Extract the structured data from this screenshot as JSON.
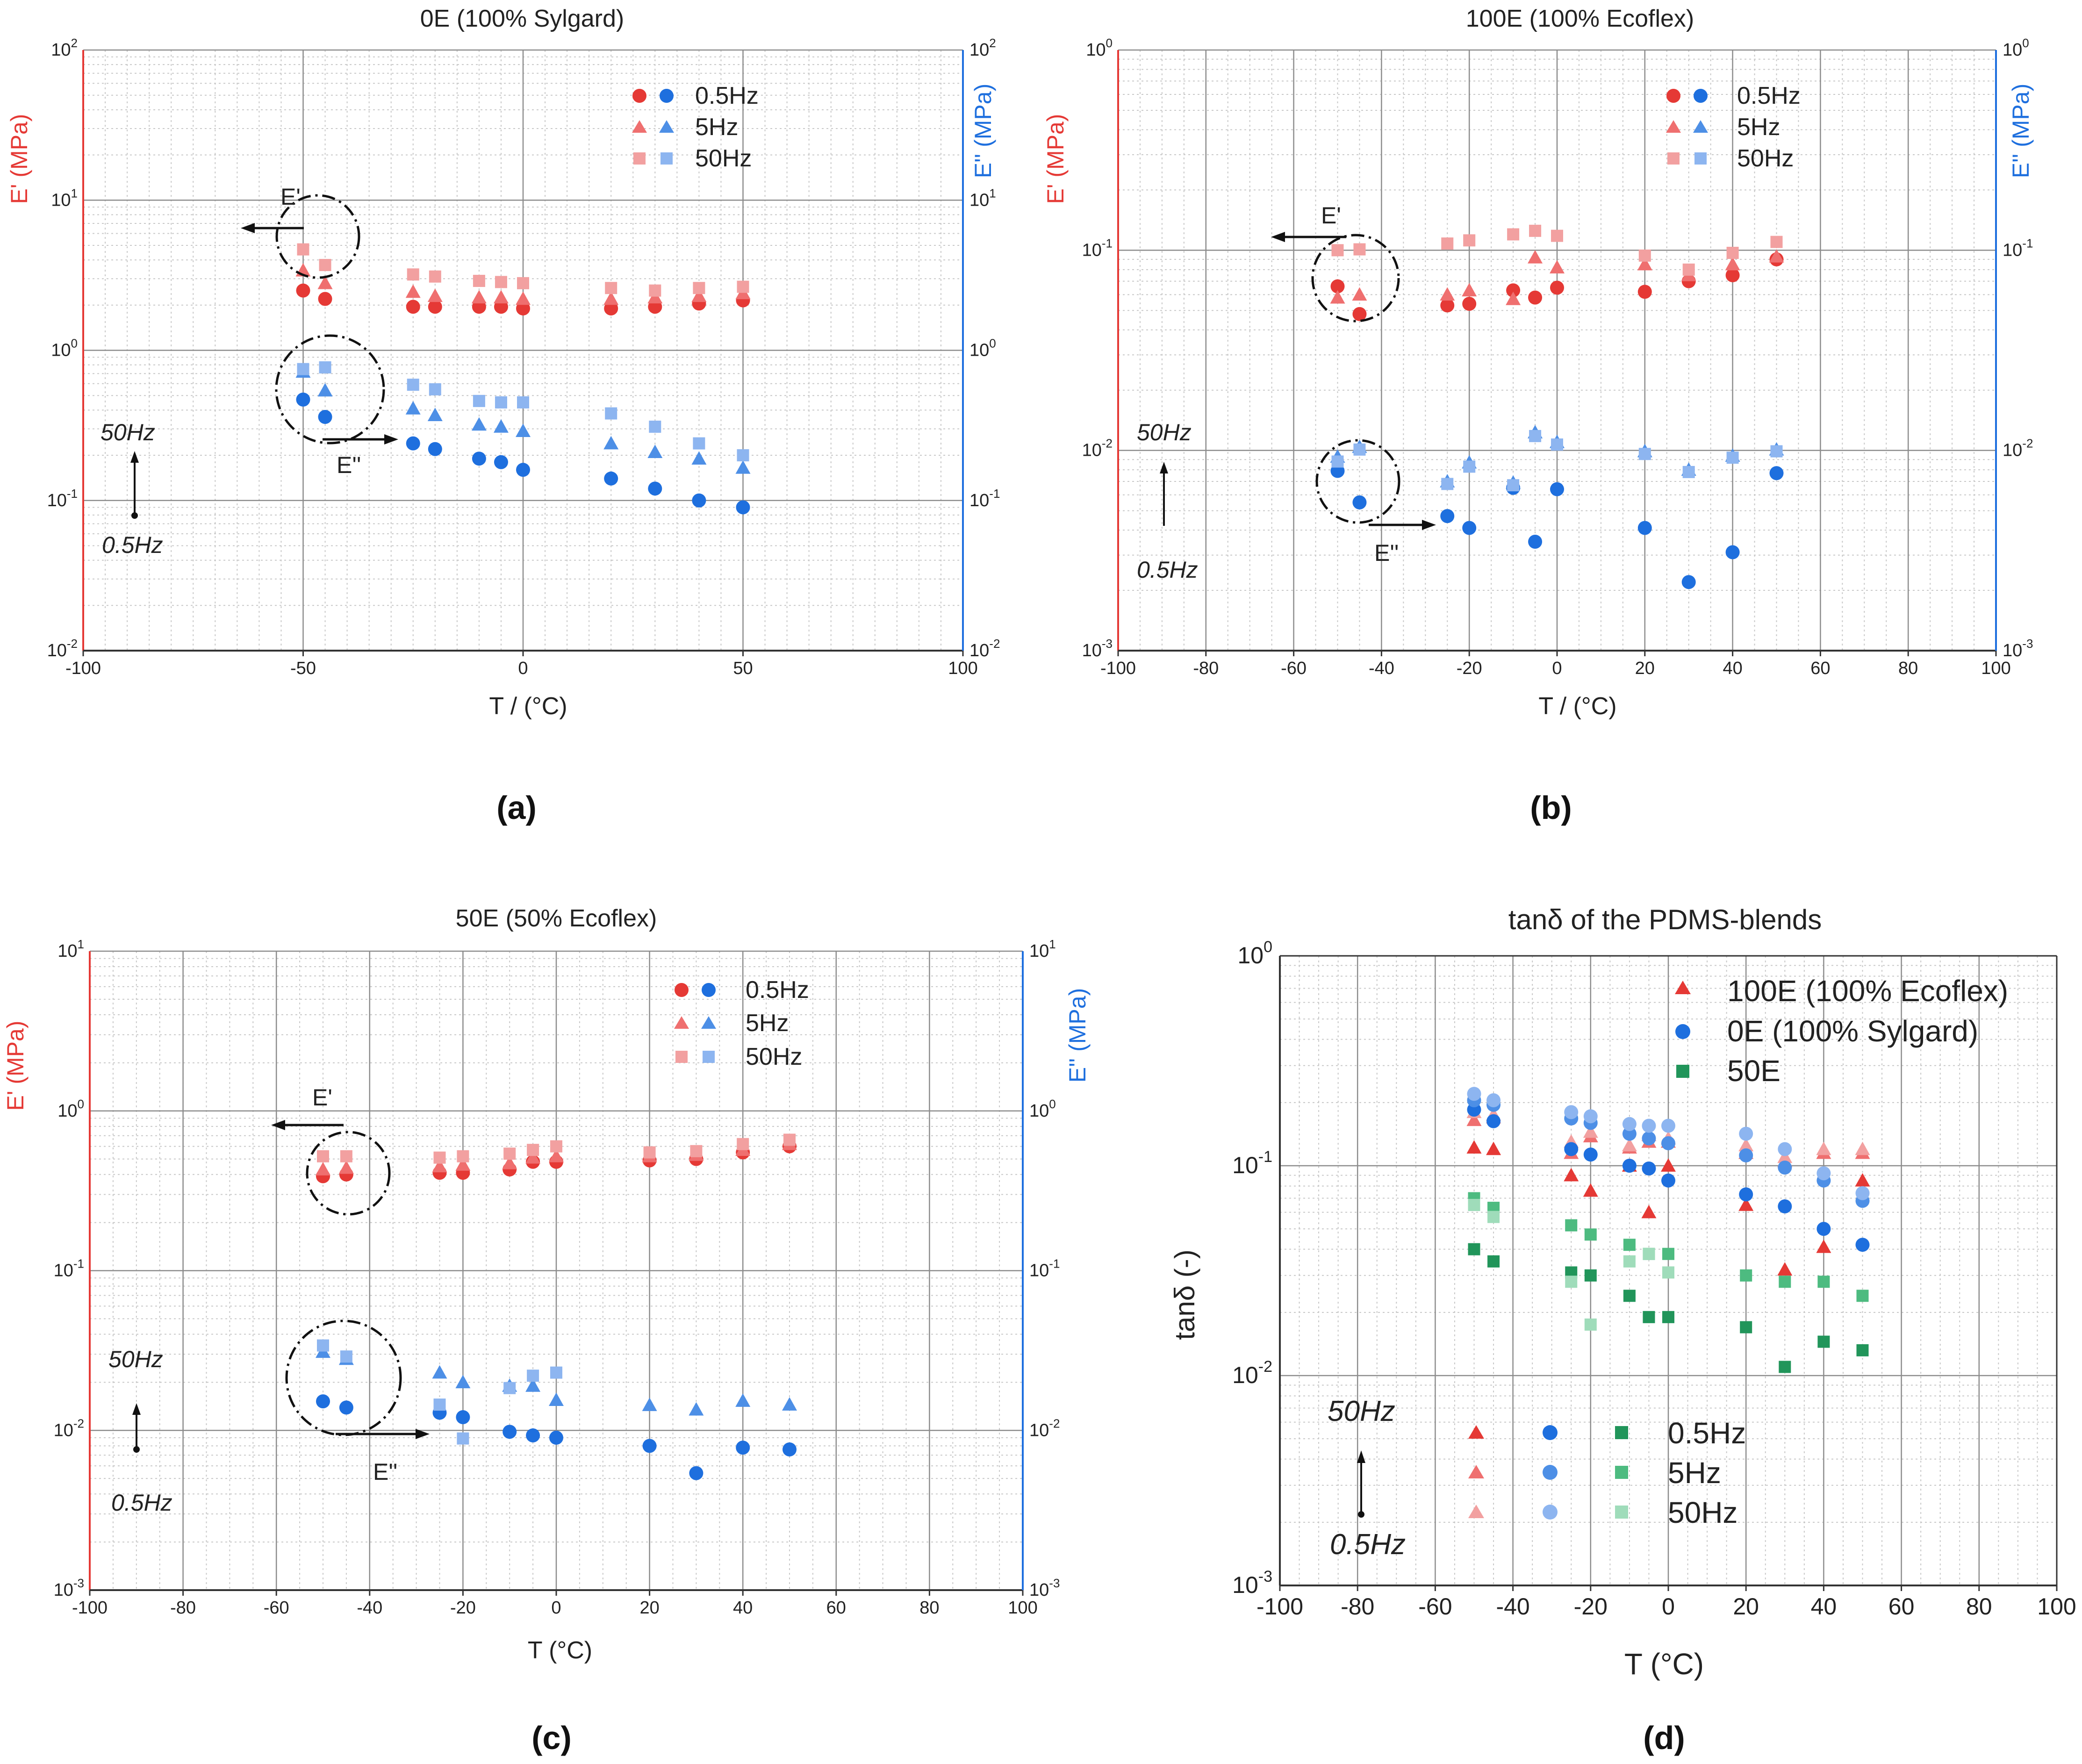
{
  "figure": {
    "colors": {
      "red_05": "#e53935",
      "red_5": "#ef6f6f",
      "red_50": "#f2a0a0",
      "blue_05": "#1e6fde",
      "blue_5": "#4d8fe6",
      "blue_50": "#8db5f0",
      "green_05": "#21955a",
      "green_5": "#4dbb80",
      "green_50": "#9fdcba",
      "left_axis": "#e53935",
      "right_axis": "#1e6fde",
      "grid_major": "#8c8c8c",
      "grid_minor": "#c8c8c8"
    }
  },
  "chart_data": [
    {
      "id": "a",
      "type": "scatter",
      "panel_label": "(a)",
      "title": "0E (100% Sylgard)",
      "xlabel": "T / (°C)",
      "ylabel_left": "E' (MPa)",
      "ylabel_right": "E'' (MPa)",
      "xlim": [
        -100,
        100
      ],
      "x_ticks": [
        -100,
        -50,
        0,
        50,
        100
      ],
      "ylim_log10": [
        -2,
        2
      ],
      "y_ticks": [
        {
          "base": "10",
          "exp": "-2"
        },
        {
          "base": "10",
          "exp": "-1"
        },
        {
          "base": "10",
          "exp": "0"
        },
        {
          "base": "10",
          "exp": "1"
        },
        {
          "base": "10",
          "exp": "2"
        }
      ],
      "legend": {
        "position": "top-right",
        "entries": [
          "0.5Hz",
          "5Hz",
          "50Hz"
        ]
      },
      "freq_note": {
        "high": "50Hz",
        "low": "0.5Hz"
      },
      "annotations": {
        "storage": "E'",
        "loss": "E''"
      },
      "x": [
        -50,
        -45,
        -25,
        -20,
        -10,
        -5,
        0,
        20,
        30,
        40,
        50
      ],
      "series": [
        {
          "name": "E' 0.5Hz",
          "marker": "circle",
          "color": "red_05",
          "values": [
            2.5,
            2.2,
            1.95,
            1.95,
            1.95,
            1.95,
            1.9,
            1.9,
            1.95,
            2.05,
            2.15
          ]
        },
        {
          "name": "E' 5Hz",
          "marker": "triangle",
          "color": "red_5",
          "values": [
            3.4,
            2.8,
            2.45,
            2.3,
            2.25,
            2.25,
            2.2,
            2.2,
            2.25,
            2.3,
            2.4
          ]
        },
        {
          "name": "E' 50Hz",
          "marker": "square",
          "color": "red_50",
          "values": [
            4.7,
            3.7,
            3.2,
            3.1,
            2.9,
            2.85,
            2.8,
            2.6,
            2.5,
            2.6,
            2.65
          ]
        },
        {
          "name": "E'' 0.5Hz",
          "marker": "circle",
          "color": "blue_05",
          "values": [
            0.47,
            0.36,
            0.24,
            0.22,
            0.19,
            0.18,
            0.16,
            0.14,
            0.12,
            0.1,
            0.09
          ]
        },
        {
          "name": "E'' 5Hz",
          "marker": "triangle",
          "color": "blue_5",
          "values": [
            0.72,
            0.54,
            0.41,
            0.37,
            0.32,
            0.31,
            0.29,
            0.24,
            0.21,
            0.19,
            0.165
          ]
        },
        {
          "name": "E'' 50Hz",
          "marker": "square",
          "color": "blue_50",
          "values": [
            0.75,
            0.77,
            0.59,
            0.55,
            0.46,
            0.45,
            0.45,
            0.38,
            0.31,
            0.24,
            0.2
          ]
        }
      ]
    },
    {
      "id": "b",
      "type": "scatter",
      "panel_label": "(b)",
      "title": "100E (100% Ecoflex)",
      "xlabel": "T / (°C)",
      "ylabel_left": "E' (MPa)",
      "ylabel_right": "E'' (MPa)",
      "xlim": [
        -100,
        100
      ],
      "x_ticks": [
        -100,
        -80,
        -60,
        -40,
        -20,
        0,
        20,
        40,
        60,
        80,
        100
      ],
      "ylim_log10": [
        -3,
        0
      ],
      "y_ticks": [
        {
          "base": "10",
          "exp": "-3"
        },
        {
          "base": "10",
          "exp": "-2"
        },
        {
          "base": "10",
          "exp": "-1"
        },
        {
          "base": "10",
          "exp": "0"
        }
      ],
      "legend": {
        "position": "top-right",
        "entries": [
          "0.5Hz",
          "5Hz",
          "50Hz"
        ]
      },
      "freq_note": {
        "high": "50Hz",
        "low": "0.5Hz"
      },
      "annotations": {
        "storage": "E'",
        "loss": "E''"
      },
      "x": [
        -50,
        -45,
        -25,
        -20,
        -10,
        -5,
        0,
        20,
        30,
        40,
        50
      ],
      "series": [
        {
          "name": "E' 0.5Hz",
          "marker": "circle",
          "color": "red_05",
          "values": [
            0.066,
            0.048,
            0.053,
            0.054,
            0.063,
            0.058,
            0.065,
            0.062,
            0.07,
            0.075,
            0.09
          ]
        },
        {
          "name": "E' 5Hz",
          "marker": "triangle",
          "color": "red_5",
          "values": [
            0.058,
            0.06,
            0.06,
            0.063,
            0.057,
            0.092,
            0.082,
            0.085,
            0.075,
            0.085,
            0.093
          ]
        },
        {
          "name": "E' 50Hz",
          "marker": "square",
          "color": "red_50",
          "values": [
            0.1,
            0.101,
            0.108,
            0.112,
            0.12,
            0.125,
            0.118,
            0.094,
            0.08,
            0.097,
            0.11
          ]
        },
        {
          "name": "E'' 0.5Hz",
          "marker": "circle",
          "color": "blue_05",
          "values": [
            0.0079,
            0.0055,
            0.0047,
            0.0041,
            0.0065,
            0.0035,
            0.0064,
            0.0041,
            0.0022,
            0.0031,
            0.0077
          ]
        },
        {
          "name": "E'' 5Hz",
          "marker": "triangle",
          "color": "blue_5",
          "values": [
            0.0093,
            0.0104,
            0.007,
            0.0087,
            0.0069,
            0.0123,
            0.011,
            0.0099,
            0.008,
            0.0094,
            0.0101
          ]
        },
        {
          "name": "E'' 50Hz",
          "marker": "square",
          "color": "blue_50",
          "values": [
            0.0088,
            0.0101,
            0.0068,
            0.0083,
            0.0067,
            0.0118,
            0.0107,
            0.0096,
            0.0078,
            0.0092,
            0.0099
          ]
        }
      ]
    },
    {
      "id": "c",
      "type": "scatter",
      "panel_label": "(c)",
      "title": "50E (50% Ecoflex)",
      "xlabel": "T    (°C)",
      "ylabel_left": "E' (MPa)",
      "ylabel_right": "E'' (MPa)",
      "xlim": [
        -100,
        100
      ],
      "x_ticks": [
        -100,
        -80,
        -60,
        -40,
        -20,
        0,
        20,
        40,
        60,
        80,
        100
      ],
      "ylim_log10": [
        -3,
        1
      ],
      "y_ticks": [
        {
          "base": "10",
          "exp": "-3"
        },
        {
          "base": "10",
          "exp": "-2"
        },
        {
          "base": "10",
          "exp": "-1"
        },
        {
          "base": "10",
          "exp": "0"
        },
        {
          "base": "10",
          "exp": "1"
        }
      ],
      "legend": {
        "position": "top-right",
        "entries": [
          "0.5Hz",
          "5Hz",
          "50Hz"
        ]
      },
      "freq_note": {
        "high": "50Hz",
        "low": "0.5Hz"
      },
      "annotations": {
        "storage": "E'",
        "loss": "E''"
      },
      "x": [
        -50,
        -45,
        -25,
        -20,
        -10,
        -5,
        0,
        20,
        30,
        40,
        50
      ],
      "series": [
        {
          "name": "E' 0.5Hz",
          "marker": "circle",
          "color": "red_05",
          "values": [
            0.39,
            0.4,
            0.41,
            0.41,
            0.43,
            0.48,
            0.48,
            0.49,
            0.5,
            0.55,
            0.6
          ]
        },
        {
          "name": "E' 5Hz",
          "marker": "triangle",
          "color": "red_5",
          "values": [
            0.43,
            0.44,
            0.45,
            0.46,
            0.47,
            0.51,
            0.52,
            0.52,
            0.53,
            0.57,
            0.62
          ]
        },
        {
          "name": "E' 50Hz",
          "marker": "square",
          "color": "red_50",
          "values": [
            0.52,
            0.52,
            0.51,
            0.52,
            0.54,
            0.57,
            0.6,
            0.55,
            0.56,
            0.62,
            0.66
          ]
        },
        {
          "name": "E'' 0.5Hz",
          "marker": "circle",
          "color": "blue_05",
          "values": [
            0.0152,
            0.0139,
            0.0129,
            0.0121,
            0.0098,
            0.0093,
            0.009,
            0.008,
            0.0054,
            0.0078,
            0.0076
          ]
        },
        {
          "name": "E'' 5Hz",
          "marker": "triangle",
          "color": "blue_5",
          "values": [
            0.031,
            0.028,
            0.023,
            0.02,
            0.019,
            0.019,
            0.0155,
            0.0144,
            0.0135,
            0.0153,
            0.0145
          ]
        },
        {
          "name": "E'' 50Hz",
          "marker": "square",
          "color": "blue_50",
          "values": [
            0.034,
            0.029,
            0.0145,
            0.0089,
            0.0184,
            0.022,
            0.023,
            null,
            null,
            null,
            null
          ]
        }
      ]
    },
    {
      "id": "d",
      "type": "scatter",
      "panel_label": "(d)",
      "title": "tanδ of the PDMS-blends",
      "xlabel": "T (°C)",
      "ylabel": "tanδ (-)",
      "xlim": [
        -100,
        100
      ],
      "x_ticks": [
        -100,
        -80,
        -60,
        -40,
        -20,
        0,
        20,
        40,
        60,
        80,
        100
      ],
      "ylim_log10": [
        -3,
        0
      ],
      "y_ticks": [
        {
          "base": "10",
          "exp": "-3"
        },
        {
          "base": "10",
          "exp": "-2"
        },
        {
          "base": "10",
          "exp": "-1"
        },
        {
          "base": "10",
          "exp": "0"
        }
      ],
      "legend": {
        "position": "top-right",
        "entries": [
          "100E (100% Ecoflex)",
          "0E (100% Sylgard)",
          "50E"
        ]
      },
      "freq_legend": {
        "entries": [
          "0.5Hz",
          "5Hz",
          "50Hz"
        ]
      },
      "freq_note": {
        "high": "50Hz",
        "low": "0.5Hz"
      },
      "x": [
        -50,
        -45,
        -25,
        -20,
        -10,
        -5,
        0,
        20,
        30,
        40,
        50
      ],
      "series": [
        {
          "name": "100E 0.5Hz",
          "marker": "triangle",
          "color": "red_05",
          "values": [
            0.122,
            0.12,
            0.09,
            0.076,
            0.1,
            0.06,
            0.1,
            0.065,
            0.032,
            0.041,
            0.085
          ]
        },
        {
          "name": "100E 5Hz",
          "marker": "triangle",
          "color": "red_5",
          "values": [
            0.165,
            0.17,
            0.115,
            0.138,
            0.122,
            0.13,
            0.13,
            0.115,
            0.105,
            0.115,
            0.115
          ]
        },
        {
          "name": "100E 50Hz",
          "marker": "triangle",
          "color": "red_50",
          "values": [
            0.18,
            0.175,
            0.13,
            0.145,
            0.125,
            0.14,
            0.135,
            0.125,
            0.11,
            0.12,
            0.12
          ]
        },
        {
          "name": "0E 0.5Hz",
          "marker": "circle",
          "color": "blue_05",
          "values": [
            0.185,
            0.163,
            0.12,
            0.113,
            0.1,
            0.097,
            0.085,
            0.073,
            0.064,
            0.05,
            0.042
          ]
        },
        {
          "name": "0E 5Hz",
          "marker": "circle",
          "color": "blue_5",
          "values": [
            0.205,
            0.195,
            0.168,
            0.16,
            0.142,
            0.135,
            0.128,
            0.112,
            0.098,
            0.085,
            0.068
          ]
        },
        {
          "name": "0E 50Hz",
          "marker": "circle",
          "color": "blue_50",
          "values": [
            0.22,
            0.205,
            0.18,
            0.172,
            0.158,
            0.155,
            0.155,
            0.142,
            0.12,
            0.092,
            0.074
          ]
        },
        {
          "name": "50E 0.5Hz",
          "marker": "square",
          "color": "green_05",
          "values": [
            0.04,
            0.035,
            0.031,
            0.03,
            0.024,
            0.019,
            0.019,
            0.017,
            0.011,
            0.0145,
            0.0132
          ]
        },
        {
          "name": "50E 5Hz",
          "marker": "square",
          "color": "green_5",
          "values": [
            0.07,
            0.063,
            0.052,
            0.047,
            0.042,
            0.038,
            0.038,
            0.03,
            0.028,
            0.028,
            0.024
          ]
        },
        {
          "name": "50E 50Hz",
          "marker": "square",
          "color": "green_50",
          "values": [
            0.065,
            0.057,
            0.028,
            0.0175,
            0.035,
            0.038,
            0.031,
            null,
            null,
            null,
            null
          ]
        }
      ]
    }
  ]
}
